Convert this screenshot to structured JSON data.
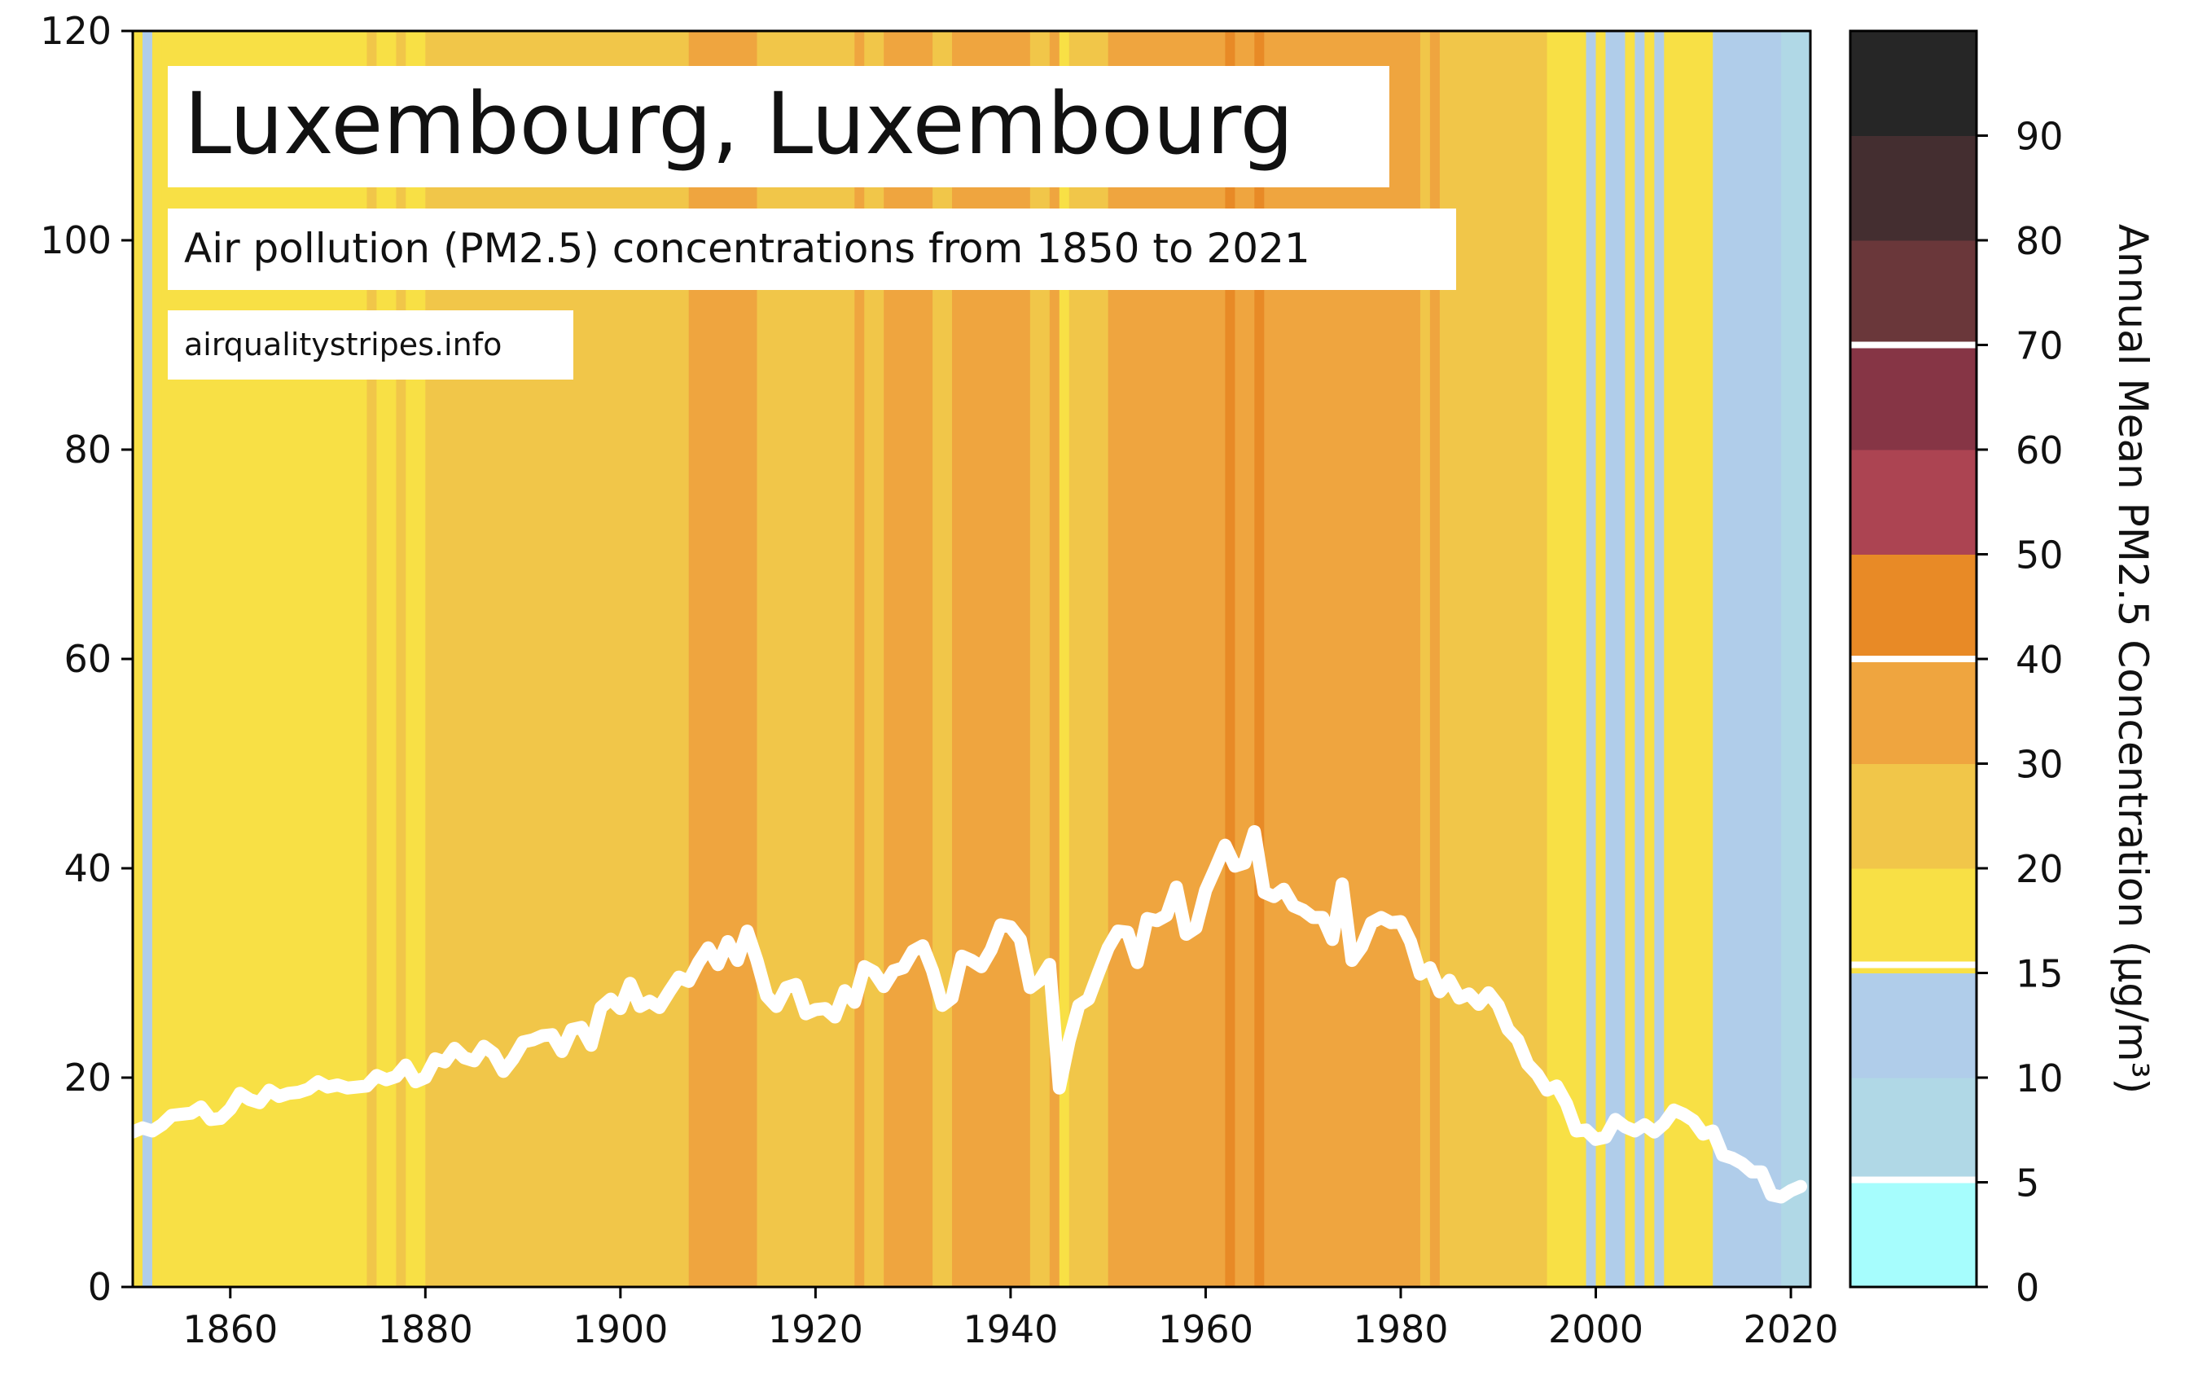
{
  "chart_data": {
    "type": "line",
    "title": "Luxembourg, Luxembourg",
    "subtitle": "Air pollution (PM2.5) concentrations from 1850 to 2021",
    "source": "airqualitystripes.info",
    "xlabel": "",
    "ylabel": "",
    "xlim": [
      1850,
      2022
    ],
    "ylim": [
      0,
      120
    ],
    "x_ticks": [
      1860,
      1880,
      1900,
      1920,
      1940,
      1960,
      1980,
      2000,
      2020
    ],
    "y_ticks": [
      0,
      20,
      40,
      60,
      80,
      100,
      120
    ],
    "line_color": "#ffffff",
    "series": [
      {
        "x": [
          1850,
          1851,
          1852,
          1853,
          1854,
          1855,
          1856,
          1857,
          1858,
          1859,
          1860,
          1861,
          1862,
          1863,
          1864,
          1865,
          1866,
          1867,
          1868,
          1869,
          1870,
          1871,
          1872,
          1873,
          1874,
          1875,
          1876,
          1877,
          1878,
          1879,
          1880,
          1881,
          1882,
          1883,
          1884,
          1885,
          1886,
          1887,
          1888,
          1889,
          1890,
          1891,
          1892,
          1893,
          1894,
          1895,
          1896,
          1897,
          1898,
          1899,
          1900,
          1901,
          1902,
          1903,
          1904,
          1905,
          1906,
          1907,
          1908,
          1909,
          1910,
          1911,
          1912,
          1913,
          1914,
          1915,
          1916,
          1917,
          1918,
          1919,
          1920,
          1921,
          1922,
          1923,
          1924,
          1925,
          1926,
          1927,
          1928,
          1929,
          1930,
          1931,
          1932,
          1933,
          1934,
          1935,
          1936,
          1937,
          1938,
          1939,
          1940,
          1941,
          1942,
          1943,
          1944,
          1945,
          1946,
          1947,
          1948,
          1949,
          1950,
          1951,
          1952,
          1953,
          1954,
          1955,
          1956,
          1957,
          1958,
          1959,
          1960,
          1961,
          1962,
          1963,
          1964,
          1965,
          1966,
          1967,
          1968,
          1969,
          1970,
          1971,
          1972,
          1973,
          1974,
          1975,
          1976,
          1977,
          1978,
          1979,
          1980,
          1981,
          1982,
          1983,
          1984,
          1985,
          1986,
          1987,
          1988,
          1989,
          1990,
          1991,
          1992,
          1993,
          1994,
          1995,
          1996,
          1997,
          1998,
          1999,
          2000,
          2001,
          2002,
          2003,
          2004,
          2005,
          2006,
          2007,
          2008,
          2009,
          2010,
          2011,
          2012,
          2013,
          2014,
          2015,
          2016,
          2017,
          2018,
          2019,
          2020,
          2021
        ],
        "values": [
          14.8,
          15.2,
          14.9,
          15.5,
          16.4,
          16.5,
          16.6,
          17.2,
          16.0,
          16.1,
          17.0,
          18.5,
          17.9,
          17.6,
          18.8,
          18.2,
          18.5,
          18.6,
          18.9,
          19.6,
          19.1,
          19.3,
          19.0,
          19.1,
          19.2,
          20.2,
          19.8,
          20.1,
          21.2,
          19.6,
          20.0,
          21.8,
          21.5,
          22.8,
          21.9,
          21.6,
          23.0,
          22.3,
          20.6,
          21.8,
          23.4,
          23.6,
          24.0,
          24.1,
          22.5,
          24.6,
          24.8,
          23.1,
          26.7,
          27.5,
          26.6,
          29.0,
          26.8,
          27.3,
          26.7,
          28.2,
          29.6,
          29.2,
          31.0,
          32.4,
          30.8,
          33.0,
          31.2,
          34.0,
          31.2,
          27.8,
          26.8,
          28.6,
          28.9,
          26.1,
          26.5,
          26.6,
          25.8,
          28.3,
          27.2,
          30.6,
          30.1,
          28.7,
          30.2,
          30.5,
          32.1,
          32.6,
          30.2,
          26.9,
          27.6,
          31.6,
          31.2,
          30.6,
          32.2,
          34.6,
          34.4,
          33.2,
          28.6,
          29.3,
          30.8,
          19.0,
          23.5,
          26.9,
          27.5,
          30.0,
          32.4,
          34.0,
          33.9,
          31.0,
          35.2,
          35.0,
          35.5,
          38.2,
          33.7,
          34.3,
          37.9,
          40.0,
          42.2,
          40.2,
          40.5,
          43.5,
          37.7,
          37.3,
          38.0,
          36.4,
          36.0,
          35.3,
          35.3,
          33.2,
          38.5,
          31.2,
          32.5,
          34.8,
          35.3,
          34.8,
          34.9,
          33.0,
          29.9,
          30.5,
          28.2,
          29.3,
          27.6,
          28.0,
          27.0,
          28.1,
          26.9,
          24.6,
          23.6,
          21.3,
          20.3,
          18.8,
          19.2,
          17.5,
          14.9,
          15.0,
          14.1,
          14.3,
          16.0,
          15.3,
          14.9,
          15.5,
          14.8,
          15.6,
          16.9,
          16.5,
          15.9,
          14.6,
          14.9,
          12.6,
          12.3,
          11.8,
          11.0,
          11.0,
          8.8,
          8.6,
          9.2,
          9.6
        ]
      }
    ],
    "stripes": [
      {
        "from": 1850,
        "to": 1851,
        "color": "#f8e045"
      },
      {
        "from": 1851,
        "to": 1852,
        "color": "#b0cdea"
      },
      {
        "from": 1852,
        "to": 1853,
        "color": "#f8e045"
      },
      {
        "from": 1853,
        "to": 1874,
        "color": "#f8e045"
      },
      {
        "from": 1874,
        "to": 1875,
        "color": "#f1c649"
      },
      {
        "from": 1875,
        "to": 1877,
        "color": "#f8e045"
      },
      {
        "from": 1877,
        "to": 1878,
        "color": "#f1c649"
      },
      {
        "from": 1878,
        "to": 1880,
        "color": "#f8e045"
      },
      {
        "from": 1880,
        "to": 1907,
        "color": "#f1c649"
      },
      {
        "from": 1907,
        "to": 1914,
        "color": "#efa53f"
      },
      {
        "from": 1914,
        "to": 1924,
        "color": "#f1c649"
      },
      {
        "from": 1924,
        "to": 1925,
        "color": "#efa53f"
      },
      {
        "from": 1925,
        "to": 1927,
        "color": "#f1c649"
      },
      {
        "from": 1927,
        "to": 1932,
        "color": "#efa53f"
      },
      {
        "from": 1932,
        "to": 1934,
        "color": "#f1c649"
      },
      {
        "from": 1934,
        "to": 1942,
        "color": "#efa53f"
      },
      {
        "from": 1942,
        "to": 1944,
        "color": "#f1c649"
      },
      {
        "from": 1944,
        "to": 1945,
        "color": "#efa53f"
      },
      {
        "from": 1945,
        "to": 1946,
        "color": "#f8e045"
      },
      {
        "from": 1946,
        "to": 1950,
        "color": "#f1c649"
      },
      {
        "from": 1950,
        "to": 1962,
        "color": "#efa53f"
      },
      {
        "from": 1962,
        "to": 1963,
        "color": "#e88a26"
      },
      {
        "from": 1963,
        "to": 1965,
        "color": "#efa53f"
      },
      {
        "from": 1965,
        "to": 1966,
        "color": "#e88a26"
      },
      {
        "from": 1966,
        "to": 1982,
        "color": "#efa53f"
      },
      {
        "from": 1982,
        "to": 1983,
        "color": "#f1c649"
      },
      {
        "from": 1983,
        "to": 1984,
        "color": "#efa53f"
      },
      {
        "from": 1984,
        "to": 1995,
        "color": "#f1c649"
      },
      {
        "from": 1995,
        "to": 1999,
        "color": "#f8e045"
      },
      {
        "from": 1999,
        "to": 2000,
        "color": "#b0cdea"
      },
      {
        "from": 2000,
        "to": 2001,
        "color": "#f8e045"
      },
      {
        "from": 2001,
        "to": 2003,
        "color": "#b0cdea"
      },
      {
        "from": 2003,
        "to": 2004,
        "color": "#f8e045"
      },
      {
        "from": 2004,
        "to": 2005,
        "color": "#b0cdea"
      },
      {
        "from": 2005,
        "to": 2006,
        "color": "#f8e045"
      },
      {
        "from": 2006,
        "to": 2007,
        "color": "#b0cdea"
      },
      {
        "from": 2007,
        "to": 2008,
        "color": "#f8e045"
      },
      {
        "from": 2008,
        "to": 2012,
        "color": "#f8e045"
      },
      {
        "from": 2012,
        "to": 2019,
        "color": "#b0cdea"
      },
      {
        "from": 2019,
        "to": 2022,
        "color": "#b0d8e6"
      }
    ],
    "colorbar": {
      "title": "Annual Mean PM2.5 Concentration (µg/m³)",
      "tick_labels": [
        "0",
        "5",
        "10",
        "15",
        "20",
        "30",
        "40",
        "50",
        "60",
        "70",
        "80",
        "90"
      ],
      "bands": [
        {
          "color": "#a6fdfd"
        },
        {
          "color": "#b0d8e6"
        },
        {
          "color": "#b0cdea"
        },
        {
          "color": "#f8e045"
        },
        {
          "color": "#f1c649"
        },
        {
          "color": "#efa53f"
        },
        {
          "color": "#e88a26"
        },
        {
          "color": "#ac4452"
        },
        {
          "color": "#863545"
        },
        {
          "color": "#6a373a"
        },
        {
          "color": "#442e30"
        },
        {
          "color": "#262626"
        }
      ],
      "guideline_levels": [
        5,
        15,
        35,
        75
      ]
    }
  }
}
